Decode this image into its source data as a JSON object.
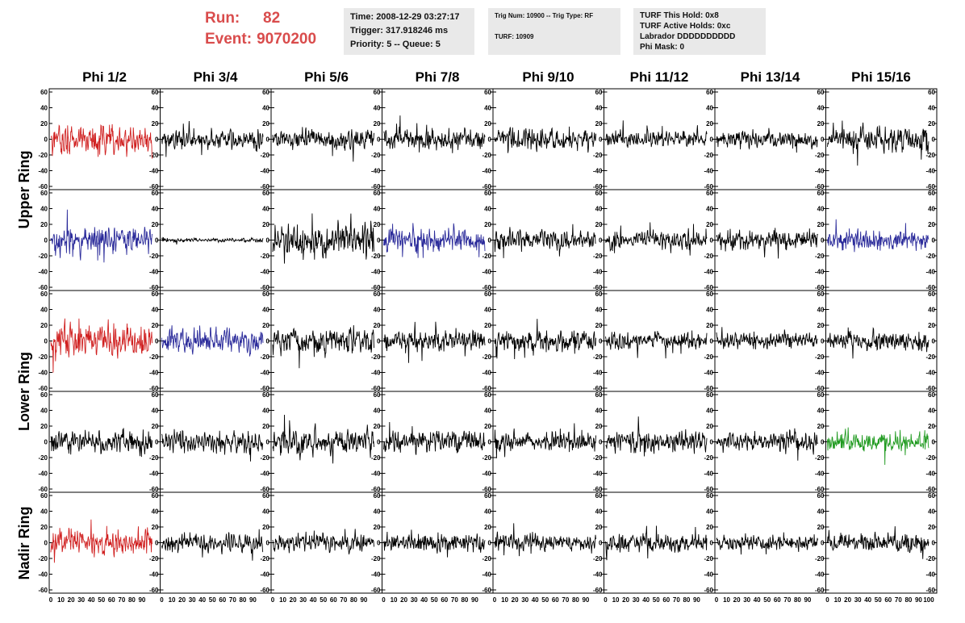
{
  "header": {
    "run_label": "Run:",
    "run_value": "82",
    "event_label": "Event:",
    "event_value": "9070200"
  },
  "info_time": {
    "time": "Time: 2008-12-29 03:27:17",
    "trigger": "Trigger: 317.918246 ms",
    "priority": "Priority: 5 -- Queue: 5"
  },
  "info_trig": {
    "trig": "Trig Num: 10900 -- Trig Type: RF",
    "turf": "TURF: 10909"
  },
  "info_turf": {
    "hold": "TURF This Hold: 0x8",
    "active": "TURF Active Holds: 0xc",
    "labrador": "Labrador DDDDDDDDDD",
    "phimask": "Phi Mask: 0"
  },
  "columns": [
    "Phi 1/2",
    "Phi 3/4",
    "Phi 5/6",
    "Phi 7/8",
    "Phi 9/10",
    "Phi 11/12",
    "Phi 13/14",
    "Phi 15/16"
  ],
  "rings": [
    "Upper Ring",
    "Lower Ring",
    "Nadir Ring"
  ],
  "chart_data": {
    "type": "line",
    "title": "",
    "xlabel": "",
    "ylabel": "",
    "xlim": [
      0,
      100
    ],
    "ylim": [
      -60,
      60
    ],
    "y_ticks": [
      -60,
      -40,
      -20,
      0,
      20,
      40,
      60
    ],
    "x_tick_labels": [
      "0",
      "10",
      "20",
      "30",
      "40",
      "50",
      "60",
      "70",
      "80",
      "90",
      "100"
    ],
    "x_axis_strip": "0 10 20 30 40 50 60 70 80 90 100",
    "grid": false,
    "rows": 5,
    "cols": 8,
    "colors": {
      "default": "#000000",
      "red": "#d02020",
      "blue": "#2a2a9a",
      "green": "#1f9a1f"
    },
    "panel_colors": [
      [
        "red",
        "black",
        "black",
        "black",
        "black",
        "black",
        "black",
        "black"
      ],
      [
        "blue",
        "black",
        "black",
        "blue",
        "black",
        "black",
        "black",
        "blue"
      ],
      [
        "red",
        "blue",
        "black",
        "black",
        "black",
        "black",
        "black",
        "black"
      ],
      [
        "black",
        "black",
        "black",
        "black",
        "black",
        "black",
        "black",
        "green"
      ],
      [
        "red",
        "black",
        "black",
        "black",
        "black",
        "black",
        "black",
        "black"
      ]
    ],
    "panel_amplitudes": [
      [
        22,
        14,
        16,
        16,
        16,
        12,
        12,
        18
      ],
      [
        22,
        3,
        24,
        18,
        16,
        14,
        14,
        16
      ],
      [
        24,
        18,
        20,
        16,
        16,
        12,
        12,
        14
      ],
      [
        18,
        16,
        20,
        16,
        14,
        16,
        14,
        16
      ],
      [
        20,
        14,
        14,
        14,
        12,
        14,
        12,
        14
      ]
    ]
  }
}
